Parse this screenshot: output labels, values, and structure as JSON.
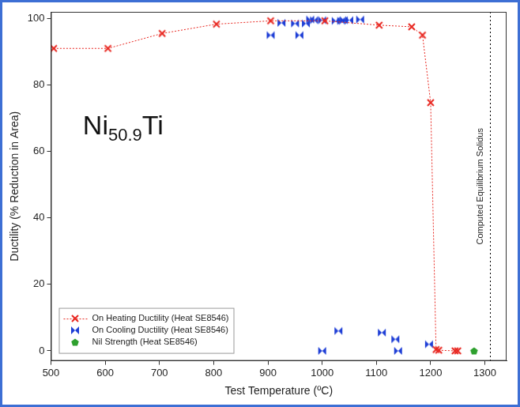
{
  "chart_data": {
    "type": "scatter",
    "x_label": "Test Temperature (ºC)",
    "y_label": "Ductility (% Reduction in Area)",
    "xlim": [
      500,
      1340
    ],
    "xticks": [
      500,
      600,
      700,
      800,
      900,
      1000,
      1100,
      1200,
      1300
    ],
    "ylim": [
      -3,
      102
    ],
    "yticks": [
      0,
      20,
      40,
      60,
      80,
      100
    ],
    "grid": false,
    "legend": "lower left",
    "annotations": [
      {
        "text": "Ni50.9Ti"
      },
      {
        "text": "Computed Equilibrium Solidus",
        "x": 1310
      }
    ],
    "series": [
      {
        "name": "On Heating Ductility (Heat SE8546)",
        "color": "#e8261f",
        "marker": "x",
        "line_style": "dotted",
        "x": [
          505,
          605,
          705,
          805,
          905,
          1005,
          1105,
          1165,
          1185,
          1200,
          1210,
          1215,
          1245,
          1250
        ],
        "values": [
          91,
          91,
          95.5,
          98.3,
          99.3,
          99.3,
          98,
          97.5,
          95,
          74.7,
          0.4,
          0.2,
          0,
          0
        ]
      },
      {
        "name": "On Cooling Ductility (Heat SE8546)",
        "color": "#1f3fd6",
        "marker": "bowtie",
        "line_style": "none",
        "x": [
          905,
          925,
          950,
          958,
          970,
          978,
          985,
          1000,
          1025,
          1035,
          1040,
          1050,
          1070,
          1000,
          1030,
          1110,
          1135,
          1140,
          1197
        ],
        "values": [
          95,
          98.7,
          98.5,
          95,
          98.5,
          99.7,
          99.5,
          99.5,
          99.3,
          99.3,
          99.5,
          99.5,
          99.7,
          0,
          6,
          5.5,
          3.5,
          0,
          2
        ]
      },
      {
        "name": "Nil Strength (Heat SE8546)",
        "color": "#2ea02e",
        "marker": "pentagon",
        "line_style": "none",
        "x": [
          1280
        ],
        "values": [
          0
        ]
      }
    ]
  }
}
